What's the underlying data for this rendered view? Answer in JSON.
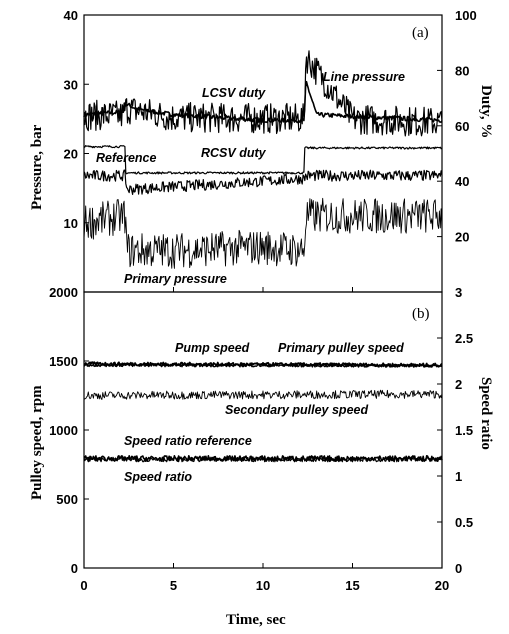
{
  "chart_data": [
    {
      "panel": "(a)",
      "type": "line",
      "xlabel": "",
      "ylabel": "Pressure, bar",
      "y2label": "Duty, %",
      "xlim": [
        0,
        20
      ],
      "ylim": [
        0,
        40
      ],
      "y2lim": [
        0,
        100
      ],
      "xticks": [
        "0",
        "5",
        "10",
        "15",
        "20"
      ],
      "yticks": [
        "10",
        "20",
        "30",
        "40"
      ],
      "y2ticks": [
        "20",
        "40",
        "60",
        "80",
        "100"
      ],
      "annotations": [
        "LCSV duty",
        "Line pressure",
        "Reference",
        "RCSV duty",
        "Primary pressure"
      ],
      "series": [
        {
          "name": "LCSV duty",
          "axis": "right",
          "x": [
            0,
            2.2,
            2.3,
            3,
            5,
            10,
            12.3,
            12.4,
            13,
            20
          ],
          "values": [
            64,
            65,
            68,
            66,
            64,
            62,
            62,
            76,
            64,
            62
          ]
        },
        {
          "name": "Line pressure",
          "axis": "left",
          "x": [
            0,
            2.2,
            2.3,
            5,
            12.3,
            12.4,
            15,
            20
          ],
          "values": [
            25.5,
            25.5,
            26.5,
            25.2,
            25.0,
            34.0,
            25.0,
            24.5
          ]
        },
        {
          "name": "Reference",
          "axis": "left",
          "x": [
            0,
            2.3,
            2.3,
            12.3,
            12.3,
            20
          ],
          "values": [
            21,
            21,
            17.2,
            17.2,
            20.8,
            20.8
          ]
        },
        {
          "name": "RCSV duty",
          "axis": "right",
          "x": [
            0,
            2.3,
            2.4,
            5,
            10,
            12.3,
            12.4,
            20
          ],
          "values": [
            42,
            42,
            37,
            38,
            40,
            41,
            42,
            42
          ]
        },
        {
          "name": "Primary pressure",
          "axis": "left",
          "x": [
            0,
            2.3,
            2.4,
            5,
            10,
            12.3,
            12.4,
            20
          ],
          "values": [
            10,
            11,
            6,
            6,
            6.5,
            6,
            11,
            11
          ]
        }
      ]
    },
    {
      "panel": "(b)",
      "type": "line",
      "xlabel": "Time, sec",
      "ylabel": "Pulley speed, rpm",
      "y2label": "Speed ratio",
      "xlim": [
        0,
        20
      ],
      "ylim": [
        0,
        2000
      ],
      "y2lim": [
        0,
        3
      ],
      "xticks": [
        "0",
        "5",
        "10",
        "15",
        "20"
      ],
      "yticks": [
        "0",
        "500",
        "1000",
        "1500",
        "2000"
      ],
      "y2ticks": [
        "0",
        "0.5",
        "1",
        "1.5",
        "2",
        "2.5",
        "3"
      ],
      "annotations": [
        "Pump speed",
        "Primary pulley speed",
        "Secondary pulley speed",
        "Speed ratio reference",
        "Speed ratio"
      ],
      "series": [
        {
          "name": "Pump speed",
          "axis": "left",
          "x": [
            0,
            20
          ],
          "values": [
            1480,
            1470
          ]
        },
        {
          "name": "Primary pulley speed",
          "axis": "left",
          "x": [
            0,
            20
          ],
          "values": [
            1470,
            1465
          ]
        },
        {
          "name": "Secondary pulley speed",
          "axis": "left",
          "x": [
            0,
            20
          ],
          "values": [
            1250,
            1260
          ]
        },
        {
          "name": "Speed ratio reference",
          "axis": "right",
          "x": [
            0,
            20
          ],
          "values": [
            1.19,
            1.19
          ]
        },
        {
          "name": "Speed ratio",
          "axis": "right",
          "x": [
            0,
            20
          ],
          "values": [
            1.18,
            1.18
          ]
        }
      ]
    }
  ]
}
